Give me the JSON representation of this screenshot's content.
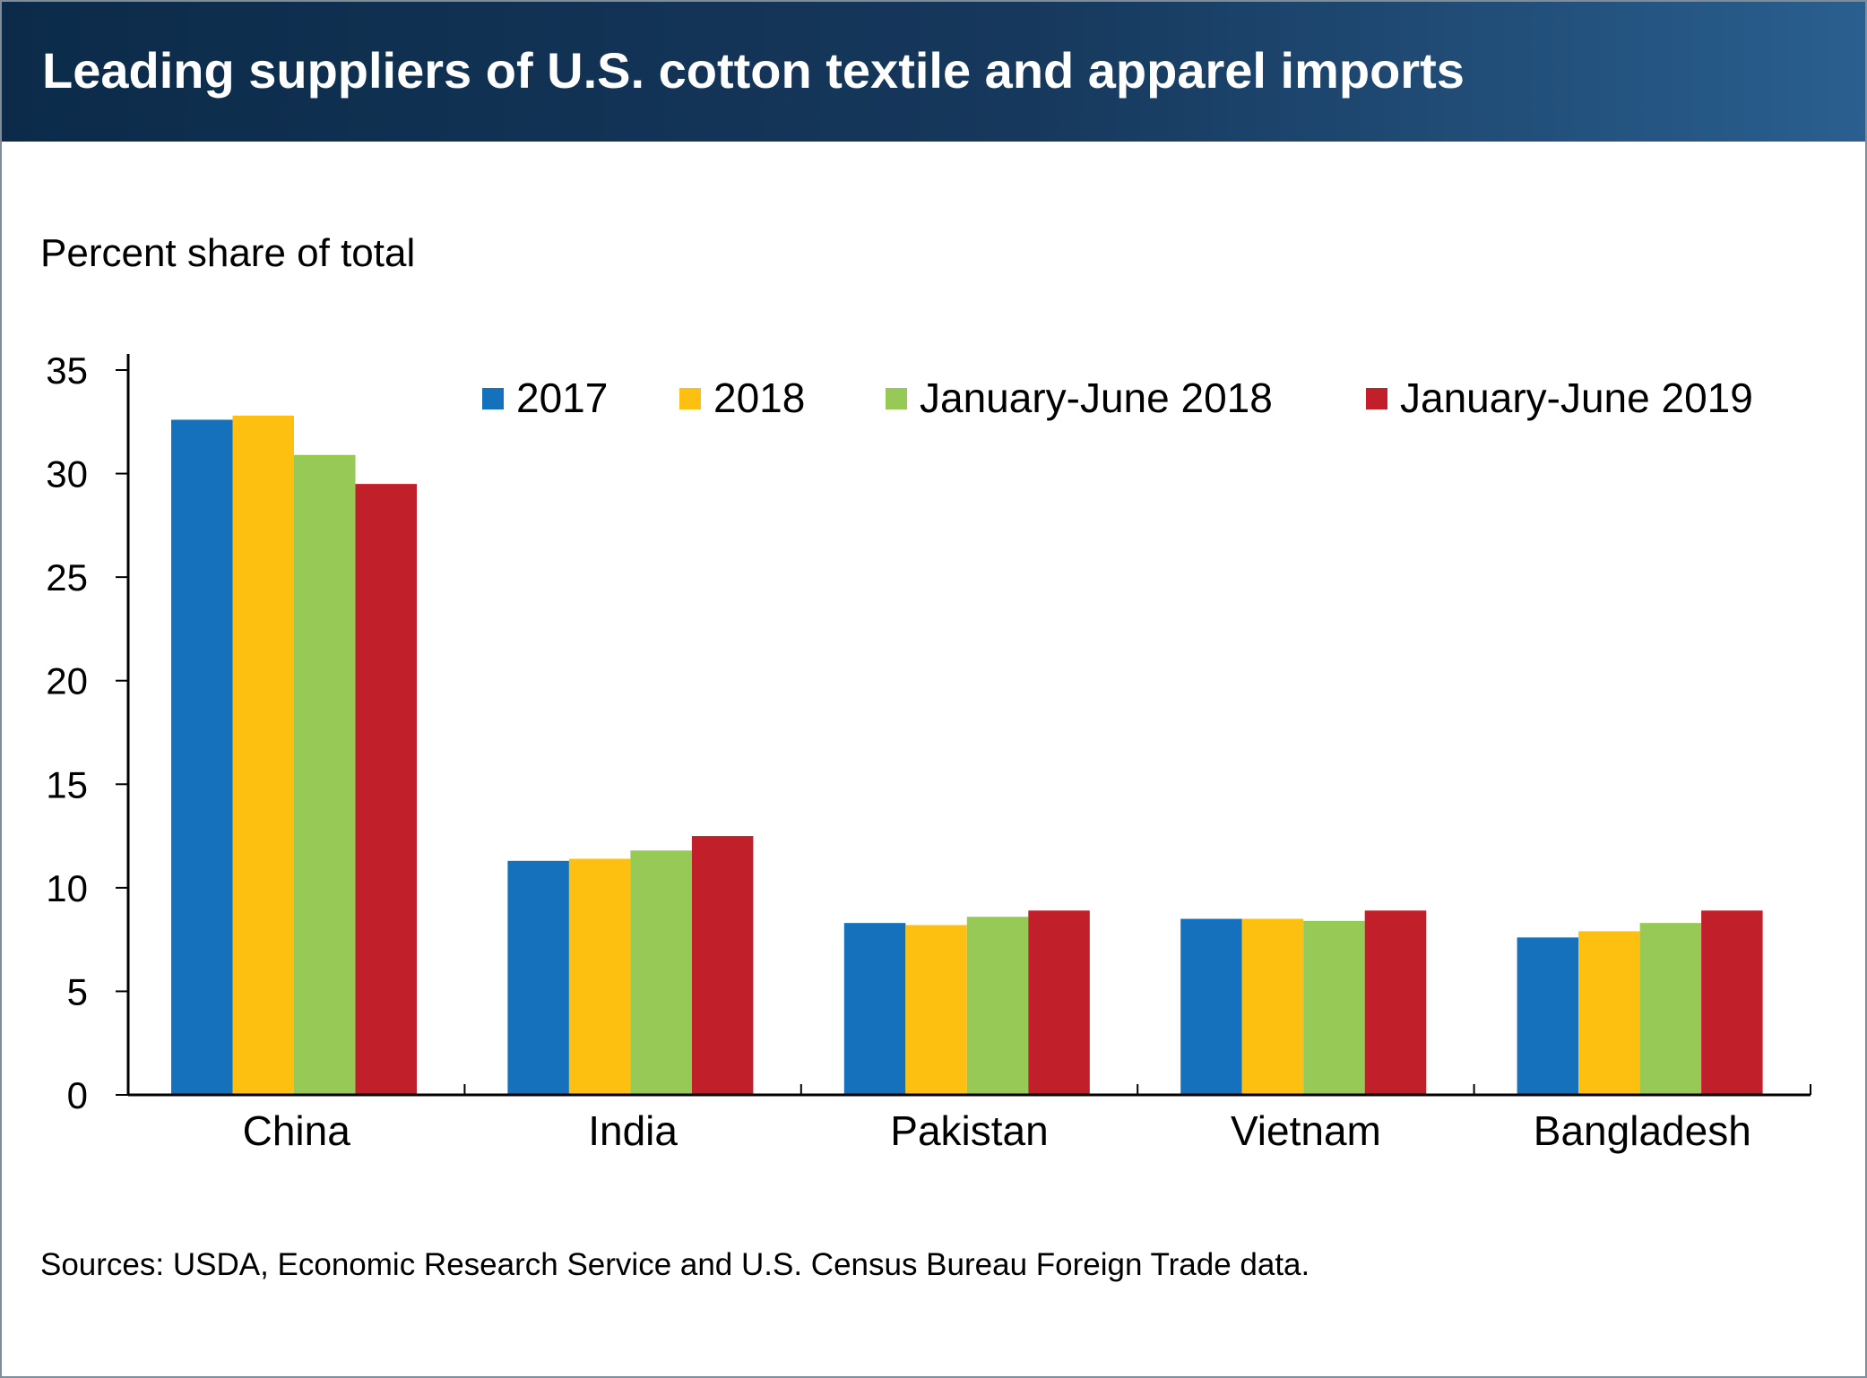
{
  "header": {
    "title": "Leading suppliers of U.S. cotton textile and apparel imports"
  },
  "footer": {
    "source": "Sources: USDA, Economic Research Service and U.S. Census Bureau Foreign Trade data."
  },
  "chart_data": {
    "type": "bar",
    "title": "Leading suppliers of U.S. cotton textile and apparel imports",
    "ylabel": "Percent share of total",
    "xlabel": "",
    "ylim": [
      0,
      35
    ],
    "yticks": [
      0,
      5,
      10,
      15,
      20,
      25,
      30,
      35
    ],
    "categories": [
      "China",
      "India",
      "Pakistan",
      "Vietnam",
      "Bangladesh"
    ],
    "legend_position": "top-right",
    "grid": false,
    "series": [
      {
        "name": "2017",
        "color": "#1571bb",
        "values": [
          32.6,
          11.3,
          8.3,
          8.5,
          7.6
        ]
      },
      {
        "name": "2018",
        "color": "#fdc010",
        "values": [
          32.8,
          11.4,
          8.2,
          8.5,
          7.9
        ]
      },
      {
        "name": "January-June 2018",
        "color": "#97c957",
        "values": [
          30.9,
          11.8,
          8.6,
          8.4,
          8.3
        ]
      },
      {
        "name": "January-June 2019",
        "color": "#c1202a",
        "values": [
          29.5,
          12.5,
          8.9,
          8.9,
          8.9
        ]
      }
    ]
  }
}
